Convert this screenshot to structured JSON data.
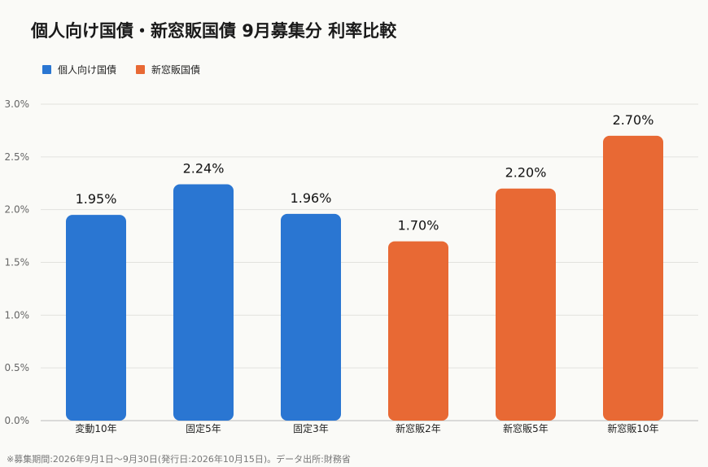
{
  "title": "個人向け国債・新窓販国債 9月募集分 利率比較",
  "legend": [
    {
      "label": "個人向け国債",
      "color": "#2a76d2"
    },
    {
      "label": "新窓販国債",
      "color": "#e86934"
    }
  ],
  "footnote": "※募集期間:2026年9月1日〜9月30日(発行日:2026年10月15日)。データ出所:財務省",
  "chart_data": {
    "type": "bar",
    "title": "個人向け国債・新窓販国債 9月募集分 利率比較",
    "categories": [
      "変動10年",
      "固定5年",
      "固定3年",
      "新窓販2年",
      "新窓販5年",
      "新窓販10年"
    ],
    "values": [
      1.95,
      2.24,
      1.96,
      1.7,
      2.2,
      2.7
    ],
    "value_labels": [
      "1.95%",
      "2.24%",
      "1.96%",
      "1.70%",
      "2.20%",
      "2.70%"
    ],
    "series_of": [
      "個人向け国債",
      "個人向け国債",
      "個人向け国債",
      "新窓販国債",
      "新窓販国債",
      "新窓販国債"
    ],
    "colors": [
      "#2a76d2",
      "#2a76d2",
      "#2a76d2",
      "#e86934",
      "#e86934",
      "#e86934"
    ],
    "yticks": [
      "0.0%",
      "0.5%",
      "1.0%",
      "1.5%",
      "2.0%",
      "2.5%",
      "3.0%"
    ],
    "ytick_values": [
      0,
      0.5,
      1.0,
      1.5,
      2.0,
      2.5,
      3.0
    ],
    "ylim": [
      0,
      3.0
    ],
    "xlabel": "",
    "ylabel": "",
    "grid": true,
    "legend_position": "top-left"
  }
}
